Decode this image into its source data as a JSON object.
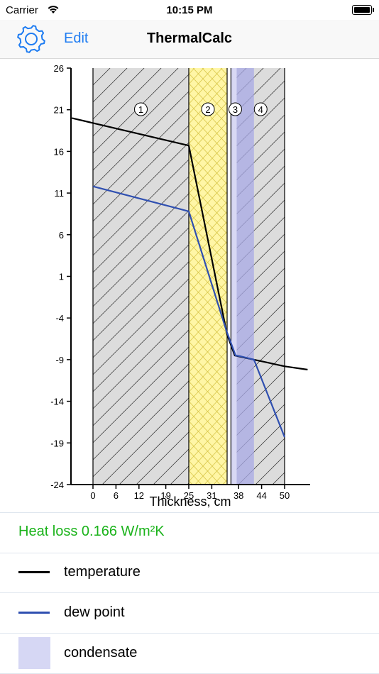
{
  "status_bar": {
    "carrier": "Carrier",
    "time": "10:15 PM"
  },
  "nav": {
    "edit_label": "Edit",
    "title": "ThermalCalc",
    "settings_icon": "gear-icon"
  },
  "chart_data": {
    "type": "line",
    "xlabel": "Thickness, cm",
    "ylabel": "",
    "xlim": [
      -5.5,
      56
    ],
    "ylim": [
      -24,
      26
    ],
    "x_ticks": [
      0,
      6,
      12,
      19,
      25,
      31,
      38,
      44,
      50
    ],
    "y_ticks": [
      26,
      21,
      16,
      11,
      6,
      1,
      -4,
      -9,
      -14,
      -19,
      -24
    ],
    "layers": [
      {
        "label": "1",
        "x": [
          0,
          25
        ],
        "material": "masonry",
        "color": "#dcdcdc"
      },
      {
        "label": "2",
        "x": [
          25,
          35
        ],
        "material": "insulation",
        "color": "#fff6a6"
      },
      {
        "label": "3",
        "x": [
          36,
          37.5
        ],
        "material": "membrane",
        "color": "#d8d8f4"
      },
      {
        "label": "4",
        "x": [
          37.5,
          50
        ],
        "material": "cladding",
        "color": "#dcdcdc"
      }
    ],
    "condensate": {
      "x": [
        37.5,
        42
      ]
    },
    "series": [
      {
        "name": "temperature",
        "color": "#000000",
        "x": [
          -5.5,
          25,
          35,
          37,
          42,
          50,
          56
        ],
        "y": [
          20.0,
          16.7,
          -6.0,
          -8.5,
          -9.0,
          -9.8,
          -10.2
        ]
      },
      {
        "name": "dew point",
        "color": "#2f4fb0",
        "x": [
          0,
          25,
          34.8,
          37.2,
          38.5,
          42,
          50
        ],
        "y": [
          11.8,
          8.8,
          -5.5,
          -8.5,
          -8.6,
          -9.0,
          -18.3
        ]
      }
    ]
  },
  "heat_loss": {
    "text": "Heat loss 0.166 W/m²K"
  },
  "legend": [
    {
      "label": "temperature",
      "kind": "line",
      "color": "#000000"
    },
    {
      "label": "dew point",
      "kind": "line",
      "color": "#2f4fb0"
    },
    {
      "label": "condensate",
      "kind": "fill",
      "color": "#d6d7f4"
    }
  ]
}
